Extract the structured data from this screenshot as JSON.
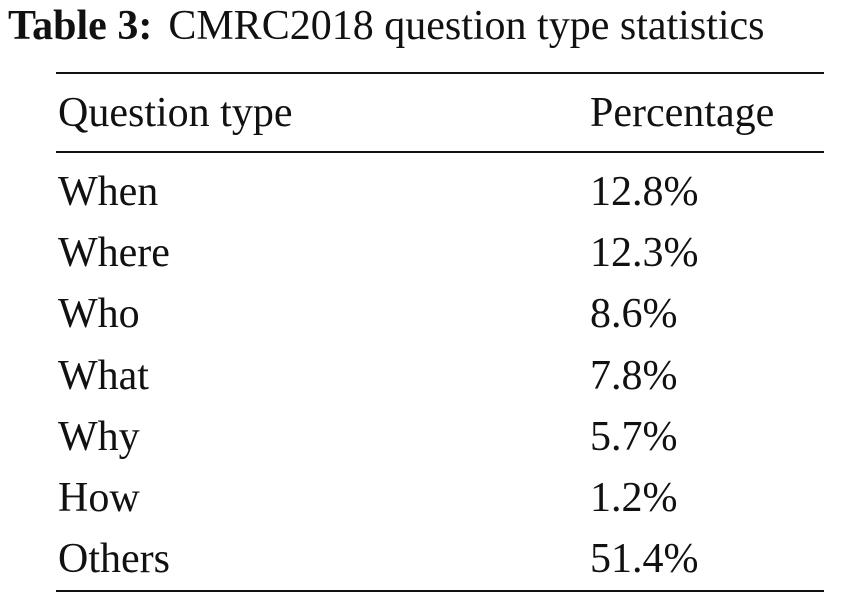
{
  "caption": {
    "label": "Table 3:",
    "text": "CMRC2018 question type statistics"
  },
  "table": {
    "headers": [
      "Question type",
      "Percentage"
    ],
    "rows": [
      {
        "type": "When",
        "percentage": "12.8%"
      },
      {
        "type": "Where",
        "percentage": "12.3%"
      },
      {
        "type": "Who",
        "percentage": "8.6%"
      },
      {
        "type": "What",
        "percentage": "7.8%"
      },
      {
        "type": "Why",
        "percentage": "5.7%"
      },
      {
        "type": "How",
        "percentage": "1.2%"
      },
      {
        "type": "Others",
        "percentage": "51.4%"
      }
    ]
  }
}
